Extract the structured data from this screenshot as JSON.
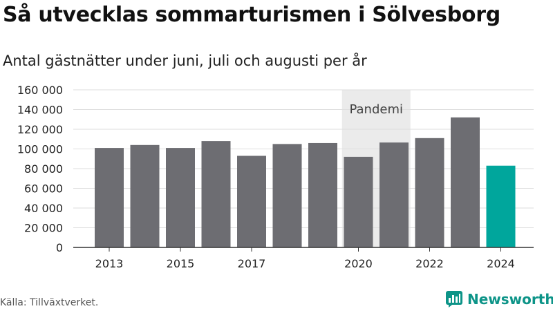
{
  "header": {
    "title": "Så utvecklas sommarturismen i Sölvesborg",
    "subtitle": "Antal gästnätter under juni, juli och augusti per år"
  },
  "footer": {
    "source": "Källa: Tillväxtverket.",
    "brand": "Newsworthy"
  },
  "colors": {
    "bar": "#6d6d72",
    "highlight": "#00a69c",
    "shade": "#ebebeb",
    "brand": "#0d9488"
  },
  "icons": {
    "logo": "newsworthy-logo-icon"
  },
  "chart_data": {
    "type": "bar",
    "title": "Så utvecklas sommarturismen i Sölvesborg",
    "subtitle": "Antal gästnätter under juni, juli och augusti per år",
    "categories": [
      "2013",
      "2014",
      "2015",
      "2016",
      "2017",
      "2018",
      "2019",
      "2020",
      "2021",
      "2022",
      "2023",
      "2024"
    ],
    "values": [
      101000,
      104000,
      101000,
      108000,
      93000,
      105000,
      106000,
      92000,
      106500,
      111000,
      132000,
      83000
    ],
    "highlight_category": "2024",
    "x_tick_labels": [
      "2013",
      "2015",
      "2017",
      "2020",
      "2022",
      "2024"
    ],
    "y_ticks": [
      0,
      20000,
      40000,
      60000,
      80000,
      100000,
      120000,
      140000,
      160000
    ],
    "y_tick_labels": [
      "0",
      "20 000",
      "40 000",
      "60 000",
      "80 000",
      "100 000",
      "120 000",
      "140 000",
      "160 000"
    ],
    "ylim": [
      0,
      160000
    ],
    "grid": true,
    "legend": "none",
    "annotation": {
      "label": "Pandemi",
      "from": "2020",
      "to": "2021"
    }
  }
}
